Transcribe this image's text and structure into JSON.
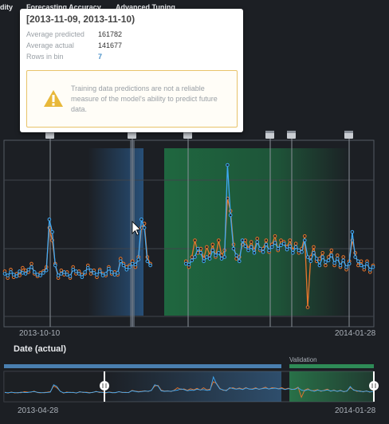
{
  "tabs": [
    "dity",
    "Forecasting Accuracy",
    "Advanced Tuning"
  ],
  "tooltip": {
    "title": "[2013-11-09, 2013-11-10)",
    "rows": [
      {
        "label": "Average predicted",
        "value": "161782"
      },
      {
        "label": "Average actual",
        "value": "141677"
      },
      {
        "label": "Rows in bin",
        "value": "7"
      }
    ],
    "warning": "Training data predictions are not a reliable measure of the model's ability to predict future data."
  },
  "axis": {
    "title": "Date (actual)",
    "main_start": "2013-10-10",
    "main_end": "2014-01-28",
    "overview_start": "2013-04-28",
    "overview_end": "2014-01-28"
  },
  "overview": {
    "validation_label": "Validation"
  },
  "colors": {
    "predicted": "#3fa9f5",
    "actual": "#e8762c",
    "backtest": "#1e6b42",
    "backtest_bar": "#4a7fb0"
  },
  "icons": [
    "calendar-icon",
    "warning-icon",
    "drag-handle-icon",
    "cursor-icon"
  ],
  "chart_data": {
    "type": "line",
    "x_start": "2013-10-01",
    "x_end": "2014-01-28",
    "series": [
      {
        "values": [
          150000,
          148000,
          152000,
          149000,
          147000,
          153000,
          151000,
          150000,
          155000,
          158000,
          152000,
          149000,
          148000,
          151000,
          154000,
          215000,
          200000,
          160000,
          148000,
          150000,
          152000,
          149000,
          147000,
          155000,
          153000,
          150000,
          146000,
          152000,
          157000,
          154000,
          151000,
          149000,
          153000,
          148000,
          150000,
          156000,
          152000,
          149000,
          151000,
          165000,
          160000,
          155000,
          158000,
          162000,
          161000,
          167000,
          215000,
          205000,
          165000,
          160000,
          null,
          null,
          null,
          null,
          null,
          null,
          null,
          null,
          null,
          null,
          null,
          162000,
          161000,
          166000,
          170000,
          180000,
          175000,
          165000,
          170000,
          168000,
          178000,
          172000,
          175000,
          168000,
          170000,
          280000,
          220000,
          180000,
          172000,
          165000,
          190000,
          183000,
          178000,
          182000,
          175000,
          188000,
          180000,
          176000,
          185000,
          178000,
          182000,
          187000,
          180000,
          184000,
          186000,
          179000,
          183000,
          175000,
          182000,
          178000,
          176000,
          190000,
          170000,
          165000,
          175000,
          168000,
          160000,
          170000,
          164000,
          166000,
          172000,
          163000,
          168000,
          160000,
          166000,
          158000,
          162000,
          200000,
          170000,
          165000,
          160000,
          158000,
          162000,
          155000,
          158000
        ]
      },
      {
        "values": [
          153000,
          145000,
          155000,
          146000,
          150000,
          148000,
          157000,
          154000,
          152000,
          162000,
          150000,
          147000,
          151000,
          153000,
          158000,
          205000,
          190000,
          162000,
          145000,
          154000,
          149000,
          152000,
          145000,
          158000,
          150000,
          153000,
          149000,
          150000,
          160000,
          150000,
          154000,
          146000,
          155000,
          150000,
          148000,
          158000,
          150000,
          152000,
          149000,
          168000,
          162000,
          158000,
          160000,
          165000,
          158000,
          170000,
          205000,
          210000,
          170000,
          162000,
          null,
          null,
          null,
          null,
          null,
          null,
          null,
          null,
          null,
          null,
          null,
          165000,
          158000,
          170000,
          190000,
          175000,
          180000,
          168000,
          182000,
          172000,
          185000,
          170000,
          190000,
          172000,
          178000,
          240000,
          225000,
          185000,
          168000,
          170000,
          185000,
          190000,
          180000,
          188000,
          178000,
          192000,
          178000,
          180000,
          190000,
          176000,
          185000,
          195000,
          178000,
          190000,
          188000,
          182000,
          190000,
          178000,
          186000,
          175000,
          180000,
          195000,
          110000,
          170000,
          182000,
          165000,
          168000,
          175000,
          160000,
          170000,
          178000,
          160000,
          172000,
          158000,
          170000,
          155000,
          165000,
          190000,
          175000,
          160000,
          165000,
          155000,
          165000,
          152000,
          160000
        ]
      }
    ],
    "ylim": [
      100000,
      300000
    ]
  }
}
